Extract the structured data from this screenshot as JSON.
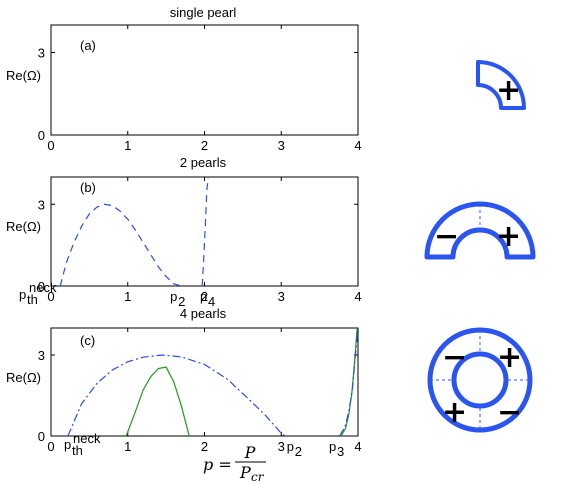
{
  "chart_data": [
    {
      "type": "line",
      "title": "single pearl",
      "panel_label": "(a)",
      "ylabel": "Re(Ω)",
      "xlim": [
        0,
        4
      ],
      "ylim": [
        0,
        4
      ],
      "xticks": [
        0,
        1,
        2,
        3,
        4
      ],
      "yticks": [
        0,
        3
      ],
      "series": []
    },
    {
      "type": "line",
      "title": "2 pearls",
      "panel_label": "(b)",
      "ylabel": "Re(Ω)",
      "xlim": [
        0,
        4
      ],
      "ylim": [
        0,
        4
      ],
      "xticks": [
        0,
        1,
        2,
        3,
        4
      ],
      "yticks": [
        0,
        3
      ],
      "markers": [
        {
          "base": "p",
          "sub": "2",
          "x": 1.63
        },
        {
          "base": "p",
          "sub": "4",
          "x": 2.02
        }
      ],
      "series": [
        {
          "style": "dashed",
          "color": "#2b4fe0",
          "x": [
            0.12,
            0.2,
            0.3,
            0.4,
            0.5,
            0.6,
            0.7,
            0.8,
            0.9,
            1.0,
            1.1,
            1.2,
            1.3,
            1.4,
            1.5,
            1.6,
            1.7
          ],
          "y": [
            0,
            0.85,
            1.6,
            2.2,
            2.65,
            2.9,
            3.0,
            2.95,
            2.75,
            2.45,
            2.05,
            1.6,
            1.15,
            0.7,
            0.35,
            0.08,
            0
          ]
        },
        {
          "style": "dashed",
          "color": "#2b4fe0",
          "x": [
            1.97,
            1.99,
            2.01,
            2.03,
            2.05
          ],
          "y": [
            0,
            1.0,
            2.2,
            3.5,
            4.0
          ]
        }
      ]
    },
    {
      "type": "line",
      "title": "4 pearls",
      "panel_label": "(c)",
      "ylabel": "Re(Ω)",
      "xlabel": "p = P / P_cr",
      "xlim": [
        0,
        4
      ],
      "ylim": [
        0,
        4
      ],
      "xticks": [
        0,
        1,
        2,
        3,
        4
      ],
      "yticks": [
        0,
        3
      ],
      "markers": [
        {
          "base": "p",
          "sub": "2",
          "x": 3.15
        },
        {
          "base": "p",
          "sub": "3",
          "x": 3.7
        }
      ],
      "series": [
        {
          "style": "dashdot",
          "color": "#2b4fe0",
          "x": [
            0.22,
            0.4,
            0.6,
            0.8,
            1.0,
            1.2,
            1.45,
            1.7,
            2.0,
            2.3,
            2.6,
            2.8,
            3.0,
            3.05
          ],
          "y": [
            0,
            1.2,
            1.95,
            2.45,
            2.75,
            2.92,
            3.0,
            2.93,
            2.65,
            2.1,
            1.3,
            0.75,
            0.1,
            0
          ]
        },
        {
          "style": "solid",
          "color": "#1e9b1e",
          "x": [
            0.98,
            1.1,
            1.2,
            1.3,
            1.4,
            1.5,
            1.6,
            1.7,
            1.8
          ],
          "y": [
            0,
            0.9,
            1.7,
            2.2,
            2.5,
            2.55,
            2.0,
            1.1,
            0
          ]
        },
        {
          "style": "solid",
          "color": "#1e9b1e",
          "x": [
            3.78,
            3.84,
            3.88,
            3.92,
            3.96,
            3.99
          ],
          "y": [
            0,
            0.3,
            0.8,
            1.6,
            2.9,
            4.0
          ]
        },
        {
          "style": "dashdot",
          "color": "#2b4fe0",
          "x": [
            3.76,
            3.83,
            3.88,
            3.93,
            3.97,
            4.0
          ],
          "y": [
            0,
            0.35,
            0.9,
            1.8,
            3.1,
            4.0
          ]
        }
      ]
    }
  ],
  "xlabel_math": {
    "lhs": "p =",
    "num": "P",
    "den": "P",
    "den_sub": "cr"
  },
  "neck_label": {
    "base": "p",
    "sub": "th",
    "sup": "neck"
  },
  "signs": {
    "plus": "+",
    "minus": "−"
  },
  "colors": {
    "shape": "#2b55f0",
    "dashed_guides": "#2b55f0"
  }
}
